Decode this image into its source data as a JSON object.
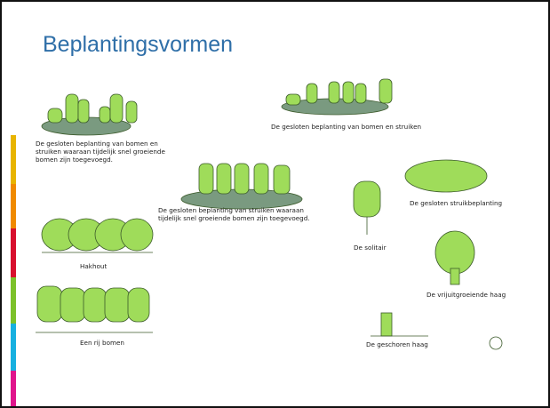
{
  "slide": {
    "title": "Beplantingsvormen",
    "captions": [
      {
        "lines": [
          "De gesloten beplanting van bomen en",
          "struiken waaraan tijdelijk snel groeiende",
          "bomen zijn toegevoegd."
        ]
      },
      {
        "lines": [
          "De gesloten beplanting van bomen en struiken"
        ]
      },
      {
        "lines": [
          "De gesloten beplanting van struiken waaraan",
          "tijdelijk snel groeiende bomen zijn toegevoegd."
        ]
      },
      {
        "lines": [
          "De gesloten struikbeplanting"
        ]
      },
      {
        "lines": [
          "De solitair"
        ]
      },
      {
        "lines": [
          "Hakhout"
        ]
      },
      {
        "lines": [
          "De vrijuitgroeiende haag"
        ]
      },
      {
        "lines": [
          "Een rij bomen"
        ]
      },
      {
        "lines": [
          "De geschoren haag"
        ]
      }
    ]
  }
}
